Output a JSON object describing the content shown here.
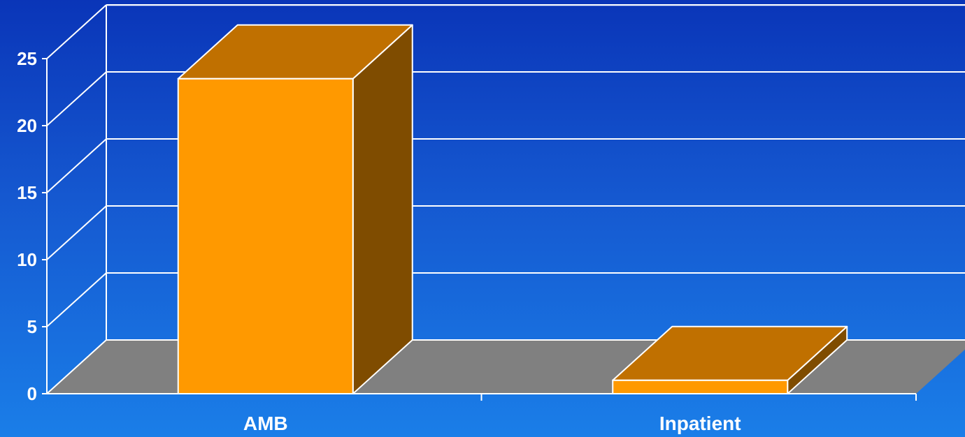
{
  "chart_data": {
    "type": "bar",
    "categories": [
      "AMB",
      "Inpatient"
    ],
    "values": [
      23.5,
      1
    ],
    "ylim": [
      0,
      25
    ],
    "yticks": [
      0,
      5,
      10,
      15,
      20,
      25
    ],
    "title": "",
    "xlabel": "",
    "ylabel": "",
    "grid": true,
    "three_d": true
  },
  "colors": {
    "bar_front": "#ff9900",
    "bar_top": "#c07000",
    "bar_side": "#7f4c00",
    "floor": "#808080",
    "lines": "#ffffff"
  }
}
